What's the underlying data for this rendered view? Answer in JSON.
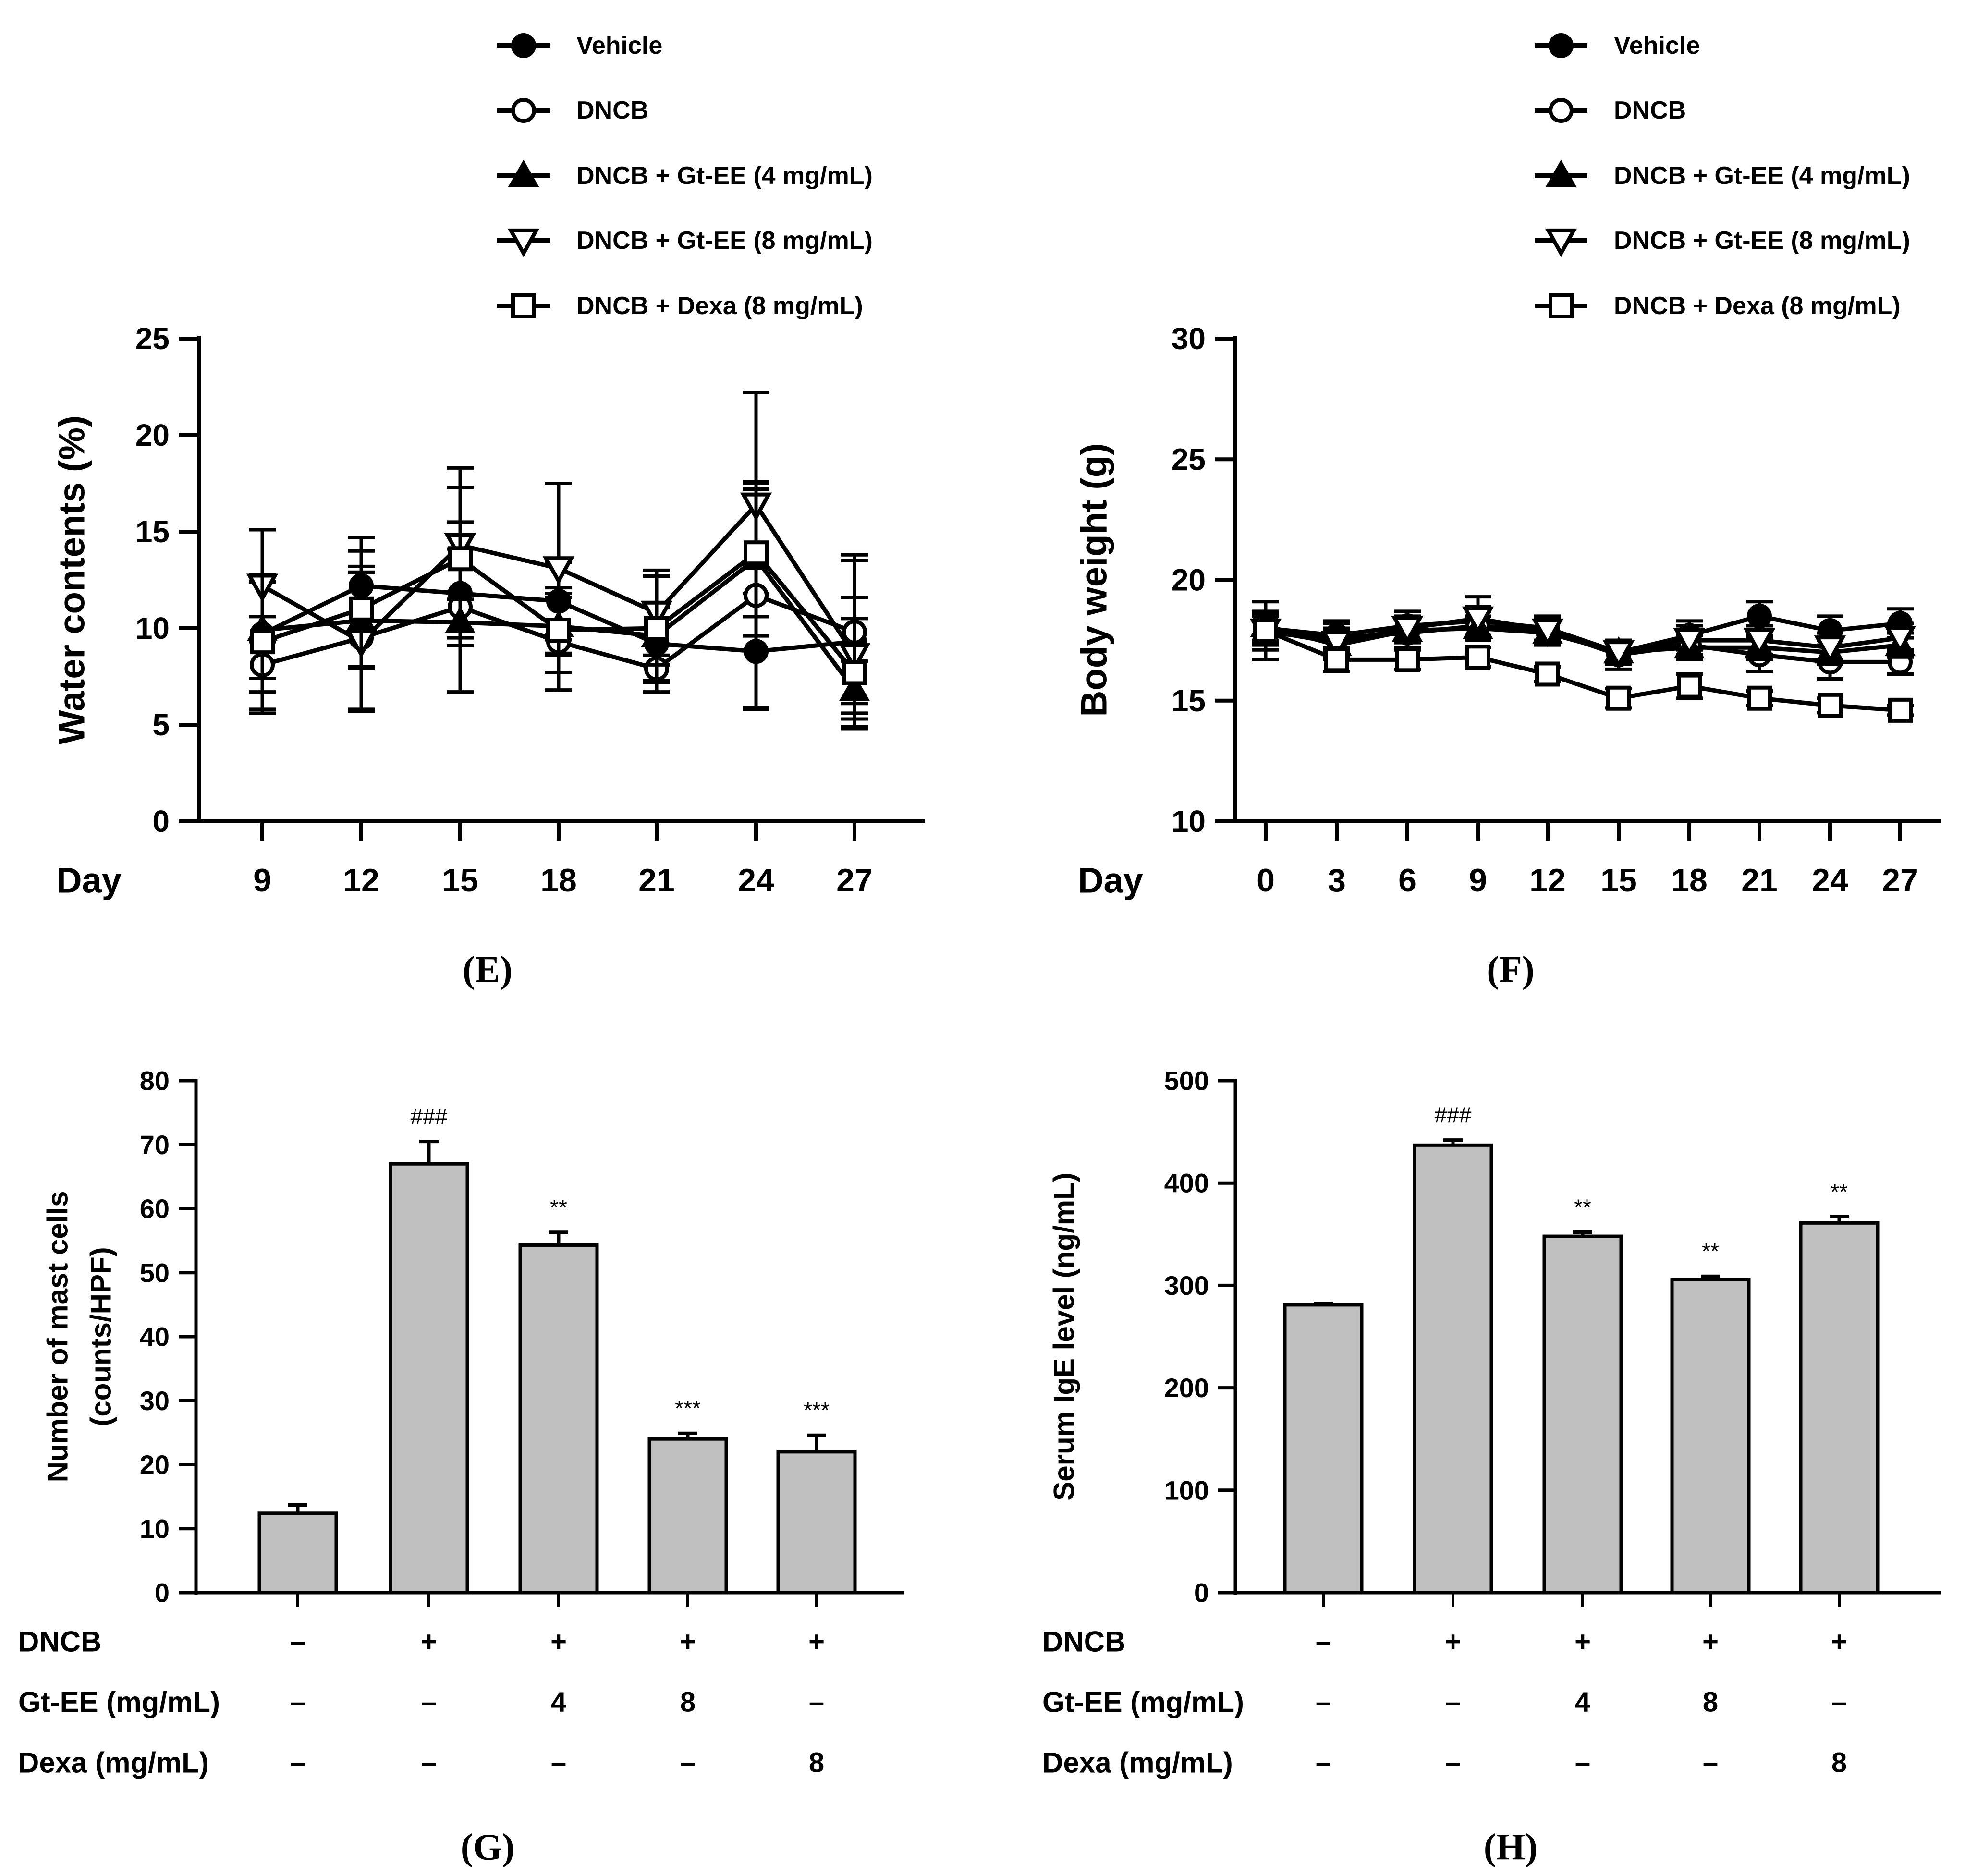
{
  "chart_data": [
    {
      "id": "E",
      "type": "line",
      "panel_label": "E",
      "ylabel": "Water contents (%)",
      "xlabel": "Day",
      "ylim": [
        0,
        25
      ],
      "yticks": [
        0,
        5,
        10,
        15,
        20,
        25
      ],
      "x": [
        9,
        12,
        15,
        18,
        21,
        24,
        27
      ],
      "series": [
        {
          "name": "Vehicle",
          "marker": "circle-filled",
          "values": [
            9.7,
            12.2,
            11.8,
            11.4,
            9.2,
            8.8,
            9.3
          ],
          "errors": [
            3.0,
            2.5,
            2.3,
            2.0,
            2.0,
            3.0,
            4.5
          ]
        },
        {
          "name": "DNCB",
          "marker": "circle-open",
          "values": [
            8.1,
            9.5,
            11.1,
            9.3,
            7.9,
            11.7,
            9.8
          ],
          "errors": [
            2.5,
            3.7,
            4.4,
            2.5,
            1.2,
            5.8,
            3.7
          ]
        },
        {
          "name": "DNCB + Gt-EE (4 mg/mL)",
          "marker": "triangle-up-filled",
          "values": [
            9.9,
            10.4,
            10.3,
            10.1,
            9.6,
            13.6,
            6.8
          ],
          "errors": [
            2.5,
            2.5,
            1.2,
            1.5,
            1.5,
            4.0,
            1.5
          ]
        },
        {
          "name": "DNCB + Gt-EE (8 mg/mL)",
          "marker": "triangle-down-open",
          "values": [
            12.2,
            9.3,
            14.3,
            13.1,
            10.8,
            16.4,
            8.6
          ],
          "errors": [
            2.9,
            3.6,
            4.0,
            4.4,
            2.2,
            5.8,
            3.0
          ]
        },
        {
          "name": "DNCB + Dexa (8 mg/mL)",
          "marker": "square-open",
          "values": [
            9.3,
            11.0,
            13.6,
            9.9,
            10.0,
            13.9,
            7.7
          ],
          "errors": [
            3.5,
            3.0,
            3.7,
            2.2,
            2.7,
            3.3,
            2.8
          ]
        }
      ]
    },
    {
      "id": "F",
      "type": "line",
      "panel_label": "F",
      "ylabel": "Body weight (g)",
      "xlabel": "Day",
      "ylim": [
        10,
        30
      ],
      "yticks": [
        10,
        15,
        20,
        25,
        30
      ],
      "x": [
        0,
        3,
        6,
        9,
        12,
        15,
        18,
        21,
        24,
        27
      ],
      "series": [
        {
          "name": "Vehicle",
          "marker": "circle-filled",
          "values": [
            18.0,
            17.7,
            18.1,
            18.3,
            18.0,
            17.0,
            17.7,
            18.5,
            17.9,
            18.2
          ],
          "errors": [
            0.6,
            0.6,
            0.6,
            0.6,
            0.5,
            0.5,
            0.6,
            0.6,
            0.6,
            0.6
          ]
        },
        {
          "name": "DNCB",
          "marker": "circle-open",
          "values": [
            17.8,
            17.6,
            17.8,
            18.1,
            17.9,
            16.9,
            17.3,
            16.9,
            16.6,
            16.6
          ],
          "errors": [
            0.7,
            0.6,
            0.6,
            0.6,
            0.5,
            0.6,
            0.6,
            0.7,
            0.7,
            0.5
          ]
        },
        {
          "name": "DNCB + Gt-EE (4 mg/mL)",
          "marker": "triangle-up-filled",
          "values": [
            18.1,
            17.3,
            17.9,
            18.0,
            17.8,
            17.0,
            17.2,
            17.2,
            17.0,
            17.3
          ],
          "errors": [
            0.6,
            0.6,
            0.5,
            0.5,
            0.5,
            0.5,
            0.5,
            0.5,
            0.5,
            0.5
          ]
        },
        {
          "name": "DNCB + Gt-EE (8 mg/mL)",
          "marker": "triangle-down-open",
          "values": [
            17.9,
            17.4,
            18.0,
            18.4,
            17.9,
            17.0,
            17.5,
            17.5,
            17.2,
            17.6
          ],
          "errors": [
            0.6,
            0.6,
            0.5,
            0.9,
            0.5,
            0.5,
            0.6,
            0.6,
            0.6,
            0.6
          ]
        },
        {
          "name": "DNCB + Dexa (8 mg/mL)",
          "marker": "square-open",
          "values": [
            17.9,
            16.7,
            16.7,
            16.8,
            16.1,
            15.1,
            15.6,
            15.1,
            14.8,
            14.6
          ],
          "errors": [
            1.2,
            0.5,
            0.4,
            0.4,
            0.3,
            0.4,
            0.5,
            0.3,
            0.3,
            0.2
          ]
        }
      ]
    },
    {
      "id": "G",
      "type": "bar",
      "panel_label": "G",
      "ylabel_lines": [
        "Number of mast cells",
        "(counts/HPF)"
      ],
      "ylim": [
        0,
        80
      ],
      "yticks": [
        0,
        10,
        20,
        30,
        40,
        50,
        60,
        70,
        80
      ],
      "values": [
        12.4,
        67.0,
        54.3,
        24.0,
        22.0
      ],
      "errors": [
        1.3,
        3.5,
        2.0,
        0.9,
        2.6
      ],
      "annotations": [
        "",
        "###",
        "**",
        "***",
        "***"
      ],
      "treatment_rows": [
        {
          "label": "DNCB",
          "values": [
            "–",
            "+",
            "+",
            "+",
            "+"
          ]
        },
        {
          "label": "Gt-EE (mg/mL)",
          "values": [
            "–",
            "–",
            "4",
            "8",
            "–"
          ]
        },
        {
          "label": "Dexa (mg/mL)",
          "values": [
            "–",
            "–",
            "–",
            "–",
            "8"
          ]
        }
      ]
    },
    {
      "id": "H",
      "type": "bar",
      "panel_label": "H",
      "ylabel_lines": [
        "Serum IgE level (ng/mL)"
      ],
      "ylim": [
        0,
        500
      ],
      "yticks": [
        0,
        100,
        200,
        300,
        400,
        500
      ],
      "values": [
        281,
        437,
        348,
        306,
        361
      ],
      "errors": [
        1.5,
        5,
        4,
        3,
        6
      ],
      "annotations": [
        "",
        "###",
        "**",
        "**",
        "**"
      ],
      "treatment_rows": [
        {
          "label": "DNCB",
          "values": [
            "–",
            "+",
            "+",
            "+",
            "+"
          ]
        },
        {
          "label": "Gt-EE (mg/mL)",
          "values": [
            "–",
            "–",
            "4",
            "8",
            "–"
          ]
        },
        {
          "label": "Dexa (mg/mL)",
          "values": [
            "–",
            "–",
            "–",
            "–",
            "8"
          ]
        }
      ]
    }
  ],
  "colors": {
    "ink": "#000000",
    "bar_fill": "#c0c0c0",
    "background": "#ffffff"
  }
}
